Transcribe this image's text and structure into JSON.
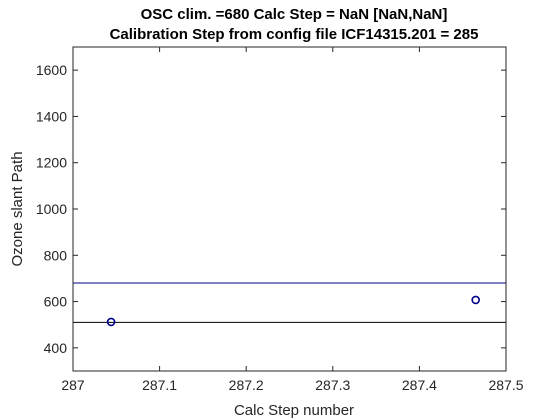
{
  "chart_data": {
    "type": "scatter",
    "title_lines": [
      "OSC clim. =680   Calc Step = NaN [NaN,NaN]",
      "Calibration Step from config file ICF14315.201 = 285"
    ],
    "xlabel": "Calc Step number",
    "ylabel": "Ozone slant Path",
    "xlim": [
      287,
      287.5
    ],
    "ylim": [
      300,
      1700
    ],
    "x_ticks": [
      287,
      287.1,
      287.2,
      287.3,
      287.4,
      287.5
    ],
    "x_tick_labels": [
      "287",
      "287.1",
      "287.2",
      "287.3",
      "287.4",
      "287.5"
    ],
    "y_ticks": [
      400,
      600,
      800,
      1000,
      1200,
      1400,
      1600
    ],
    "y_tick_labels": [
      "400",
      "600",
      "800",
      "1000",
      "1200",
      "1400",
      "1600"
    ],
    "grid": false,
    "points": [
      {
        "x": 287.044,
        "y": 512
      },
      {
        "x": 287.465,
        "y": 607
      }
    ],
    "hlines": [
      {
        "y": 680,
        "color": "#00008b"
      },
      {
        "y": 510,
        "color": "#000000"
      }
    ],
    "marker_color": "#00008b"
  }
}
